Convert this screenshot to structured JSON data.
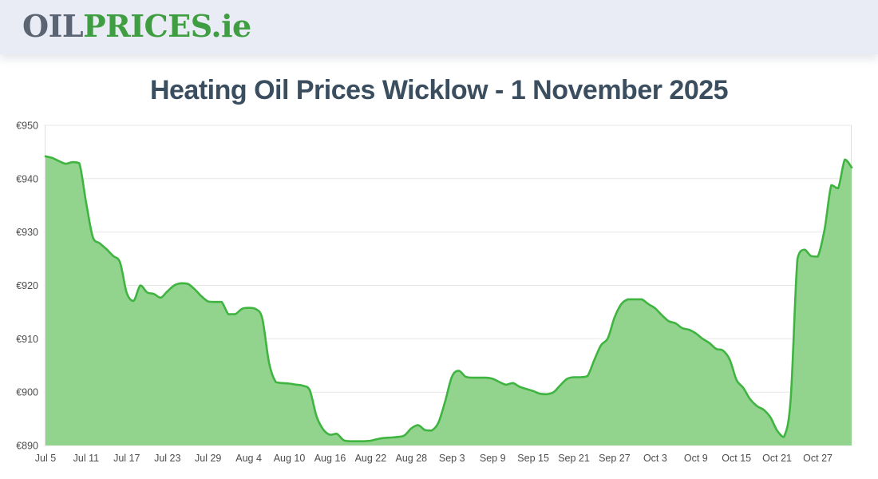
{
  "header": {
    "logo": {
      "part_oil": "OIL",
      "part_prices": "PRICES",
      "part_domain": ".ie"
    }
  },
  "page": {
    "title": "Heating Oil Prices Wicklow - 1 November 2025"
  },
  "colors": {
    "header_bg": "#e9ecf4",
    "logo_gray": "#5b6472",
    "brand_green": "#3f9e41",
    "title_text": "#3a4e5f",
    "line": "#3fb441",
    "fill": "#92d38e",
    "grid": "#e7e7e7",
    "axis": "#e0e0e0",
    "tick_text": "#4c4c4c"
  },
  "chart_data": {
    "type": "area",
    "title": "Heating Oil Prices Wicklow - 1 November 2025",
    "currency_prefix": "€",
    "ylim": [
      890,
      950
    ],
    "ytick_step": 10,
    "grid": "horizontal-only",
    "legend": "none",
    "frequency": "daily",
    "x_start_date": "Jul 5",
    "x_end_date": "Nov 1",
    "x_tick_labels": [
      "Jul 5",
      "Jul 11",
      "Jul 17",
      "Jul 23",
      "Jul 29",
      "Aug 4",
      "Aug 10",
      "Aug 16",
      "Aug 22",
      "Aug 28",
      "Sep 3",
      "Sep 9",
      "Sep 15",
      "Sep 21",
      "Sep 27",
      "Oct 3",
      "Oct 9",
      "Oct 15",
      "Oct 21",
      "Oct 27"
    ],
    "x_tick_day_indices": [
      0,
      6,
      12,
      18,
      24,
      30,
      36,
      42,
      48,
      54,
      60,
      66,
      72,
      78,
      84,
      90,
      96,
      102,
      108,
      114
    ],
    "values": [
      944.2,
      943.9,
      943.3,
      942.8,
      943.1,
      942.9,
      935.5,
      929.0,
      927.9,
      926.8,
      925.5,
      924.3,
      918.6,
      917.1,
      920.0,
      918.7,
      918.4,
      917.7,
      918.9,
      920.0,
      920.4,
      920.3,
      919.3,
      918.0,
      917.0,
      916.9,
      916.9,
      914.6,
      914.6,
      915.6,
      915.8,
      915.6,
      913.8,
      905.5,
      901.9,
      901.7,
      901.6,
      901.4,
      901.2,
      900.4,
      895.5,
      893.0,
      892.0,
      892.2,
      891.0,
      890.8,
      890.8,
      890.8,
      890.9,
      891.2,
      891.4,
      891.5,
      891.6,
      891.9,
      893.2,
      893.8,
      892.9,
      892.8,
      894.3,
      898.3,
      902.9,
      904.0,
      902.9,
      902.7,
      902.7,
      902.7,
      902.5,
      901.9,
      901.4,
      901.7,
      901.0,
      900.6,
      900.2,
      899.7,
      899.6,
      900.0,
      901.3,
      902.5,
      902.8,
      902.8,
      903.0,
      906.0,
      908.8,
      910.1,
      914.0,
      916.5,
      917.4,
      917.4,
      917.4,
      916.5,
      915.7,
      914.4,
      913.3,
      912.9,
      912.0,
      911.7,
      911.0,
      910.0,
      909.2,
      908.1,
      907.8,
      906.1,
      902.3,
      900.8,
      898.7,
      897.4,
      896.7,
      895.3,
      892.8,
      891.6,
      898.7,
      925.0,
      926.7,
      925.5,
      925.4,
      930.5,
      938.8,
      938.2,
      943.6,
      942.1
    ]
  }
}
